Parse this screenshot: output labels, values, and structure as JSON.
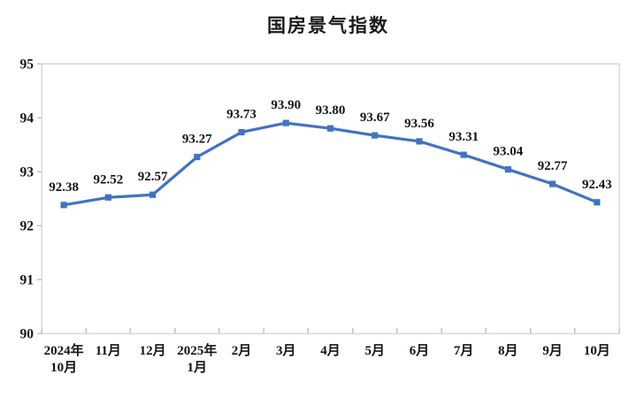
{
  "page": {
    "background": "#ffffff"
  },
  "chart_data": {
    "type": "line",
    "title": "国房景气指数",
    "categories": [
      [
        "2024年",
        "10月"
      ],
      [
        "11月"
      ],
      [
        "12月"
      ],
      [
        "2025年",
        "1月"
      ],
      [
        "2月"
      ],
      [
        "3月"
      ],
      [
        "4月"
      ],
      [
        "5月"
      ],
      [
        "6月"
      ],
      [
        "7月"
      ],
      [
        "8月"
      ],
      [
        "9月"
      ],
      [
        "10月"
      ]
    ],
    "values": [
      92.38,
      92.52,
      92.57,
      93.27,
      93.73,
      93.9,
      93.8,
      93.67,
      93.56,
      93.31,
      93.04,
      92.77,
      92.43
    ],
    "value_decimals": 2,
    "xlabel": "",
    "ylabel": "",
    "ylim": [
      90,
      95
    ],
    "ytick_step": 1,
    "ytick_labels": [
      "90",
      "91",
      "92",
      "93",
      "94",
      "95"
    ],
    "grid": false,
    "legend": "none",
    "marker": "square",
    "data_labels_visible": true,
    "colors": {
      "line": "#4173C3",
      "marker": "#4173C3",
      "axis": "#c2c2c2",
      "plot_border": "#d9d9d9",
      "text": "#141414",
      "title": "#1a1a1a"
    }
  }
}
